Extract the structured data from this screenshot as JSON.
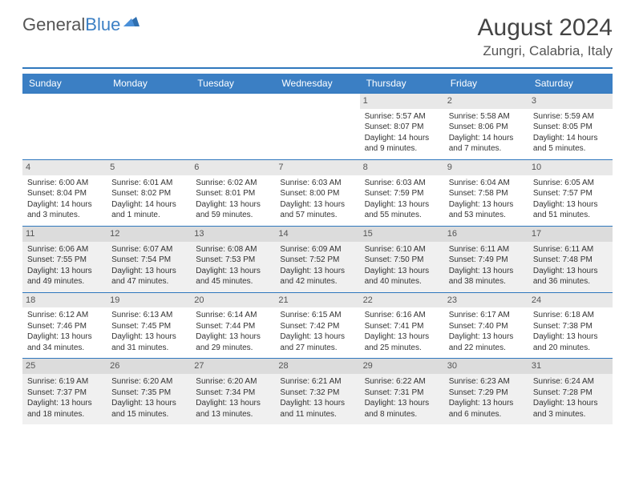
{
  "brand": {
    "part1": "General",
    "part2": "Blue"
  },
  "title": "August 2024",
  "location": "Zungri, Calabria, Italy",
  "colors": {
    "headerBar": "#3b7fc4",
    "ruleLine": "#2f77bd",
    "altRow": "#f0f0f0",
    "dayNumBg": "#e8e8e8",
    "dayNumAltBg": "#dcdcdc",
    "text": "#333333",
    "background": "#ffffff"
  },
  "dayNames": [
    "Sunday",
    "Monday",
    "Tuesday",
    "Wednesday",
    "Thursday",
    "Friday",
    "Saturday"
  ],
  "weeks": [
    {
      "alt": false,
      "days": [
        null,
        null,
        null,
        null,
        {
          "n": "1",
          "sunrise": "5:57 AM",
          "sunset": "8:07 PM",
          "daylight": "14 hours and 9 minutes."
        },
        {
          "n": "2",
          "sunrise": "5:58 AM",
          "sunset": "8:06 PM",
          "daylight": "14 hours and 7 minutes."
        },
        {
          "n": "3",
          "sunrise": "5:59 AM",
          "sunset": "8:05 PM",
          "daylight": "14 hours and 5 minutes."
        }
      ]
    },
    {
      "alt": false,
      "days": [
        {
          "n": "4",
          "sunrise": "6:00 AM",
          "sunset": "8:04 PM",
          "daylight": "14 hours and 3 minutes."
        },
        {
          "n": "5",
          "sunrise": "6:01 AM",
          "sunset": "8:02 PM",
          "daylight": "14 hours and 1 minute."
        },
        {
          "n": "6",
          "sunrise": "6:02 AM",
          "sunset": "8:01 PM",
          "daylight": "13 hours and 59 minutes."
        },
        {
          "n": "7",
          "sunrise": "6:03 AM",
          "sunset": "8:00 PM",
          "daylight": "13 hours and 57 minutes."
        },
        {
          "n": "8",
          "sunrise": "6:03 AM",
          "sunset": "7:59 PM",
          "daylight": "13 hours and 55 minutes."
        },
        {
          "n": "9",
          "sunrise": "6:04 AM",
          "sunset": "7:58 PM",
          "daylight": "13 hours and 53 minutes."
        },
        {
          "n": "10",
          "sunrise": "6:05 AM",
          "sunset": "7:57 PM",
          "daylight": "13 hours and 51 minutes."
        }
      ]
    },
    {
      "alt": true,
      "days": [
        {
          "n": "11",
          "sunrise": "6:06 AM",
          "sunset": "7:55 PM",
          "daylight": "13 hours and 49 minutes."
        },
        {
          "n": "12",
          "sunrise": "6:07 AM",
          "sunset": "7:54 PM",
          "daylight": "13 hours and 47 minutes."
        },
        {
          "n": "13",
          "sunrise": "6:08 AM",
          "sunset": "7:53 PM",
          "daylight": "13 hours and 45 minutes."
        },
        {
          "n": "14",
          "sunrise": "6:09 AM",
          "sunset": "7:52 PM",
          "daylight": "13 hours and 42 minutes."
        },
        {
          "n": "15",
          "sunrise": "6:10 AM",
          "sunset": "7:50 PM",
          "daylight": "13 hours and 40 minutes."
        },
        {
          "n": "16",
          "sunrise": "6:11 AM",
          "sunset": "7:49 PM",
          "daylight": "13 hours and 38 minutes."
        },
        {
          "n": "17",
          "sunrise": "6:11 AM",
          "sunset": "7:48 PM",
          "daylight": "13 hours and 36 minutes."
        }
      ]
    },
    {
      "alt": false,
      "days": [
        {
          "n": "18",
          "sunrise": "6:12 AM",
          "sunset": "7:46 PM",
          "daylight": "13 hours and 34 minutes."
        },
        {
          "n": "19",
          "sunrise": "6:13 AM",
          "sunset": "7:45 PM",
          "daylight": "13 hours and 31 minutes."
        },
        {
          "n": "20",
          "sunrise": "6:14 AM",
          "sunset": "7:44 PM",
          "daylight": "13 hours and 29 minutes."
        },
        {
          "n": "21",
          "sunrise": "6:15 AM",
          "sunset": "7:42 PM",
          "daylight": "13 hours and 27 minutes."
        },
        {
          "n": "22",
          "sunrise": "6:16 AM",
          "sunset": "7:41 PM",
          "daylight": "13 hours and 25 minutes."
        },
        {
          "n": "23",
          "sunrise": "6:17 AM",
          "sunset": "7:40 PM",
          "daylight": "13 hours and 22 minutes."
        },
        {
          "n": "24",
          "sunrise": "6:18 AM",
          "sunset": "7:38 PM",
          "daylight": "13 hours and 20 minutes."
        }
      ]
    },
    {
      "alt": true,
      "days": [
        {
          "n": "25",
          "sunrise": "6:19 AM",
          "sunset": "7:37 PM",
          "daylight": "13 hours and 18 minutes."
        },
        {
          "n": "26",
          "sunrise": "6:20 AM",
          "sunset": "7:35 PM",
          "daylight": "13 hours and 15 minutes."
        },
        {
          "n": "27",
          "sunrise": "6:20 AM",
          "sunset": "7:34 PM",
          "daylight": "13 hours and 13 minutes."
        },
        {
          "n": "28",
          "sunrise": "6:21 AM",
          "sunset": "7:32 PM",
          "daylight": "13 hours and 11 minutes."
        },
        {
          "n": "29",
          "sunrise": "6:22 AM",
          "sunset": "7:31 PM",
          "daylight": "13 hours and 8 minutes."
        },
        {
          "n": "30",
          "sunrise": "6:23 AM",
          "sunset": "7:29 PM",
          "daylight": "13 hours and 6 minutes."
        },
        {
          "n": "31",
          "sunrise": "6:24 AM",
          "sunset": "7:28 PM",
          "daylight": "13 hours and 3 minutes."
        }
      ]
    }
  ],
  "labels": {
    "sunrise": "Sunrise:",
    "sunset": "Sunset:",
    "daylight": "Daylight:"
  }
}
